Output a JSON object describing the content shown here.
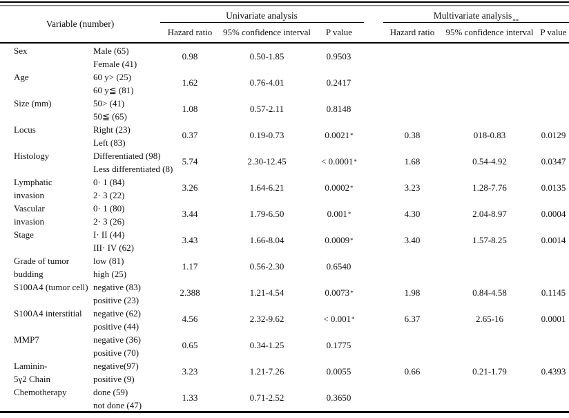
{
  "table": {
    "variable_header": "Variable (number)",
    "univariate_header": "Univariate analysis",
    "univariate_sup": "",
    "multivariate_header": "Multivariate analysis",
    "multivariate_sup": "**",
    "subheaders": {
      "hazard_ratio": "Hazard ratio",
      "ci": "95% confidence interval",
      "p": "P value"
    },
    "rows": [
      {
        "variable": [
          "Sex",
          ""
        ],
        "categories": [
          "Male (65)",
          "Female (41)"
        ],
        "uni": {
          "hr": "0.98",
          "ci": "0.50-1.85",
          "p": "0.9503",
          "star": ""
        },
        "multi": {
          "hr": "",
          "ci": "",
          "p": ""
        }
      },
      {
        "variable": [
          "Age",
          ""
        ],
        "categories": [
          "60 y> (25)",
          "60 y≦ (81)"
        ],
        "uni": {
          "hr": "1.62",
          "ci": "0.76-4.01",
          "p": "0.2417",
          "star": ""
        },
        "multi": {
          "hr": "",
          "ci": "",
          "p": ""
        }
      },
      {
        "variable": [
          "Size (mm)",
          ""
        ],
        "categories": [
          "50> (41)",
          "50≦ (65)"
        ],
        "uni": {
          "hr": "1.08",
          "ci": "0.57-2.11",
          "p": "0.8148",
          "star": ""
        },
        "multi": {
          "hr": "",
          "ci": "",
          "p": ""
        }
      },
      {
        "variable": [
          "Locus",
          ""
        ],
        "categories": [
          "Right (23)",
          "Left (83)"
        ],
        "uni": {
          "hr": "0.37",
          "ci": "0.19-0.73",
          "p": "0.0021",
          "star": "*"
        },
        "multi": {
          "hr": "0.38",
          "ci": "018-0.83",
          "p": "0.0129"
        }
      },
      {
        "variable": [
          "Histology",
          ""
        ],
        "categories": [
          "Differentiated (98)",
          "Less differentiated (8)"
        ],
        "uni": {
          "hr": "5.74",
          "ci": "2.30-12.45",
          "p": "< 0.0001",
          "star": "*"
        },
        "multi": {
          "hr": "1.68",
          "ci": "0.54-4.92",
          "p": "0.0347"
        }
      },
      {
        "variable": [
          "Lymphatic",
          "invasion"
        ],
        "categories": [
          "0· 1 (84)",
          "2· 3 (22)"
        ],
        "uni": {
          "hr": "3.26",
          "ci": "1.64-6.21",
          "p": "0.0002",
          "star": "*"
        },
        "multi": {
          "hr": "3.23",
          "ci": "1.28-7.76",
          "p": "0.0135"
        }
      },
      {
        "variable": [
          "Vascular",
          "invasion"
        ],
        "categories": [
          "0· 1 (80)",
          "2· 3 (26)"
        ],
        "uni": {
          "hr": "3.44",
          "ci": "1.79-6.50",
          "p": "0.001",
          "star": "*"
        },
        "multi": {
          "hr": "4.30",
          "ci": "2.04-8.97",
          "p": "0.0004"
        }
      },
      {
        "variable": [
          "Stage",
          ""
        ],
        "categories": [
          "I· II (44)",
          "III· IV (62)"
        ],
        "uni": {
          "hr": "3.43",
          "ci": "1.66-8.04",
          "p": "0.0009",
          "star": "*"
        },
        "multi": {
          "hr": "3.40",
          "ci": "1.57-8.25",
          "p": "0.0014"
        }
      },
      {
        "variable": [
          "Grade of tumor",
          "budding"
        ],
        "categories": [
          "low (81)",
          "high (25)"
        ],
        "uni": {
          "hr": "1.17",
          "ci": "0.56-2.30",
          "p": "0.6540",
          "star": ""
        },
        "multi": {
          "hr": "",
          "ci": "",
          "p": ""
        }
      },
      {
        "variable": [
          "S100A4 (tumor cell)",
          ""
        ],
        "categories": [
          "negative (83)",
          "positive (23)"
        ],
        "uni": {
          "hr": "2.388",
          "ci": "1.21-4.54",
          "p": "0.0073",
          "star": "*"
        },
        "multi": {
          "hr": "1.98",
          "ci": "0.84-4.58",
          "p": "0.1145"
        }
      },
      {
        "variable": [
          "S100A4 interstitial",
          ""
        ],
        "categories": [
          "negative (62)",
          "positive (44)"
        ],
        "uni": {
          "hr": "4.56",
          "ci": "2.32-9.62",
          "p": "< 0.001",
          "star": "*"
        },
        "multi": {
          "hr": "6.37",
          "ci": "2.65-16",
          "p": "0.0001"
        }
      },
      {
        "variable": [
          "MMP7",
          ""
        ],
        "categories": [
          "negative (36)",
          "positive (70)"
        ],
        "uni": {
          "hr": "0.65",
          "ci": "0.34-1.25",
          "p": "0.1775",
          "star": ""
        },
        "multi": {
          "hr": "",
          "ci": "",
          "p": ""
        }
      },
      {
        "variable": [
          "Laminin-",
          "5γ2 Chain"
        ],
        "categories": [
          "negative(97)",
          "positive (9)"
        ],
        "uni": {
          "hr": "3.23",
          "ci": "1.21-7.26",
          "p": "0.0055",
          "star": ""
        },
        "multi": {
          "hr": "0.66",
          "ci": "0.21-1.79",
          "p": "0.4393"
        }
      },
      {
        "variable": [
          "Chemotherapy",
          ""
        ],
        "categories": [
          "done (59)",
          "not done (47)"
        ],
        "uni": {
          "hr": "1.33",
          "ci": "0.71-2.52",
          "p": "0.3650",
          "star": ""
        },
        "multi": {
          "hr": "",
          "ci": "",
          "p": ""
        }
      }
    ]
  }
}
